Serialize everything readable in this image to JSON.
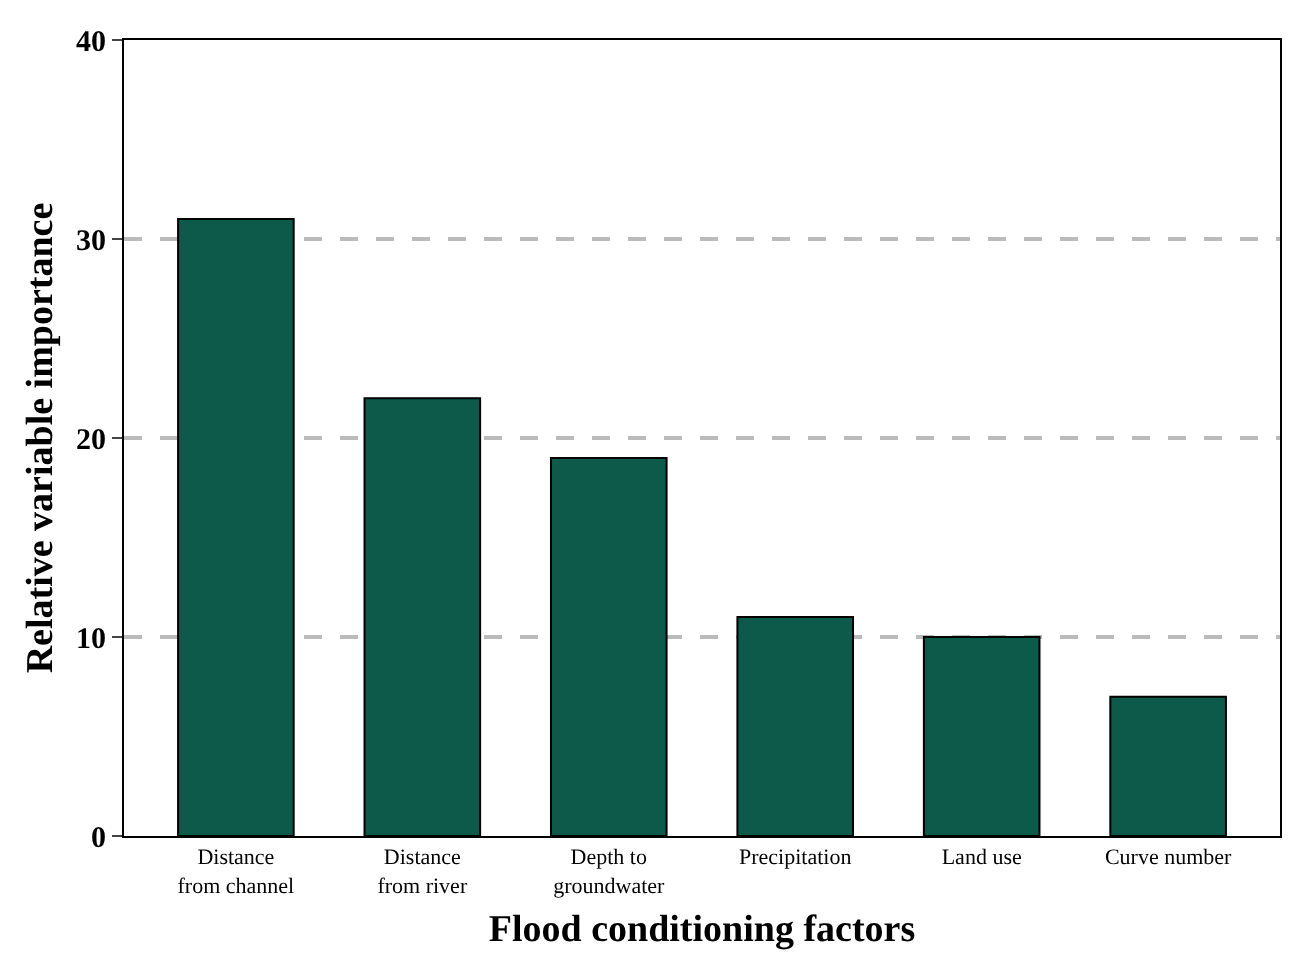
{
  "chart_data": {
    "type": "bar",
    "xlabel": "Flood conditioning factors",
    "ylabel": "Relative variable importance",
    "categories": [
      "Distance\nfrom channel",
      "Distance\nfrom river",
      "Depth to\ngroundwater",
      "Precipitation",
      "Land use",
      "Curve number"
    ],
    "values": [
      31,
      22,
      19,
      11,
      10,
      7
    ],
    "color": "#0d5a4a",
    "ylim": [
      0,
      40
    ],
    "yticks": [
      0,
      10,
      20,
      30,
      40
    ],
    "grid": "y"
  }
}
